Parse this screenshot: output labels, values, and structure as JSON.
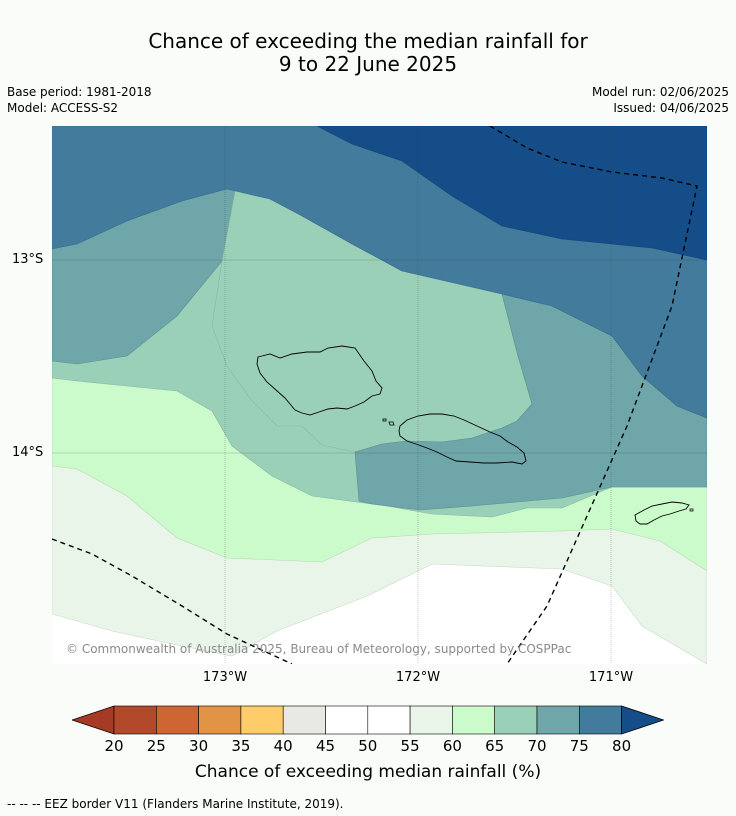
{
  "title_line1": "Chance of exceeding the median rainfall for",
  "title_line2": "9 to 22 June 2025",
  "base_period": "Base period: 1981-2018",
  "model": "Model: ACCESS-S2",
  "model_run": "Model run: 02/06/2025",
  "issued": "Issued: 04/06/2025",
  "lat_labels": [
    "13°S",
    "14°S"
  ],
  "lon_labels": [
    "173°W",
    "172°W",
    "171°W"
  ],
  "copyright": "© Commonwealth of Australia 2025, Bureau of Meteorology, supported by COSPPac",
  "colorbar": {
    "title": "Chance of exceeding median rainfall (%)",
    "ticks": [
      "20",
      "25",
      "30",
      "35",
      "40",
      "45",
      "50",
      "55",
      "60",
      "65",
      "70",
      "75",
      "80"
    ],
    "colors": [
      "#a53b24",
      "#b2492a",
      "#cd6633",
      "#e19346",
      "#fecd69",
      "#e9e9e4",
      "#ffffff",
      "#ffffff",
      "#e9f5e9",
      "#cbfacb",
      "#9bd0b8",
      "#6ea6a9",
      "#427b9b",
      "#154d89"
    ]
  },
  "footnote": "--  --  -- EEZ border V11 (Flanders Marine Institute, 2019)."
}
